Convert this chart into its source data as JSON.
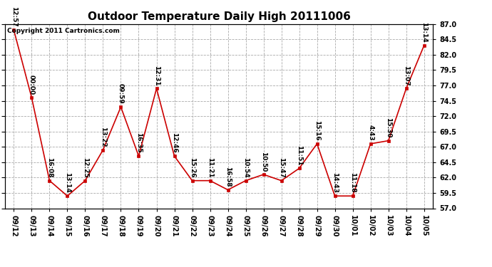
{
  "title": "Outdoor Temperature Daily High 20111006",
  "copyright_text": "Copyright 2011 Cartronics.com",
  "x_labels": [
    "09/12",
    "09/13",
    "09/14",
    "09/15",
    "09/16",
    "09/17",
    "09/18",
    "09/19",
    "09/20",
    "09/21",
    "09/22",
    "09/23",
    "09/24",
    "09/25",
    "09/26",
    "09/27",
    "09/28",
    "09/29",
    "09/30",
    "10/01",
    "10/02",
    "10/03",
    "10/04",
    "10/05"
  ],
  "y_values": [
    86.0,
    75.0,
    61.5,
    59.0,
    61.5,
    66.5,
    73.5,
    65.5,
    76.5,
    65.5,
    61.5,
    61.5,
    60.0,
    61.5,
    62.5,
    61.5,
    63.5,
    67.5,
    59.0,
    59.0,
    67.5,
    68.0,
    76.5,
    83.5
  ],
  "point_labels": [
    "12:57",
    "00:00",
    "16:08",
    "13:14",
    "12:25",
    "13:22",
    "09:59",
    "16:35",
    "12:31",
    "12:46",
    "15:26",
    "11:21",
    "16:58",
    "10:54",
    "10:50",
    "15:47",
    "11:51",
    "15:16",
    "14:43",
    "11:18",
    "4:43",
    "15:30",
    "13:07",
    "13:14"
  ],
  "line_color": "#cc0000",
  "marker_color": "#cc0000",
  "bg_color": "#ffffff",
  "grid_color": "#aaaaaa",
  "ylim_min": 57.0,
  "ylim_max": 87.0,
  "ytick_step": 2.5,
  "title_fontsize": 11,
  "label_fontsize": 6.5,
  "tick_fontsize": 7,
  "copyright_fontsize": 6.5
}
